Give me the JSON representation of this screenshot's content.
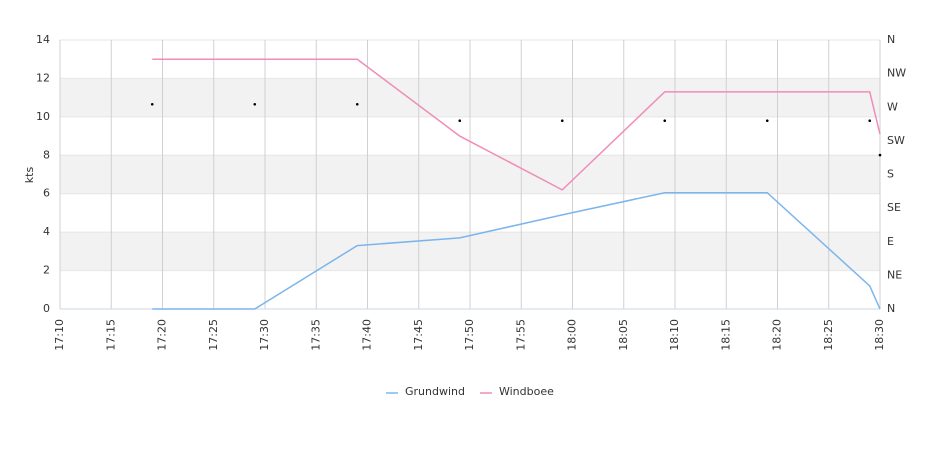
{
  "chart_data": {
    "type": "line",
    "ylabel": "kts",
    "x": [
      "17:19",
      "17:29",
      "17:39",
      "17:49",
      "17:59",
      "18:09",
      "18:19",
      "18:29",
      "18:30"
    ],
    "series": [
      {
        "name": "Grundwind",
        "color": "#7cb5ec",
        "values": [
          0,
          0,
          3.3,
          3.7,
          4.9,
          6.05,
          6.05,
          1.2,
          0
        ]
      },
      {
        "name": "Windboee",
        "color": "#f08cb8",
        "values": [
          13,
          13,
          13,
          9.0,
          6.2,
          11.3,
          11.3,
          11.3,
          9.1
        ]
      },
      {
        "color": "#000000",
        "axis": "y2",
        "marker_only": true,
        "values": [
          274,
          274,
          274,
          252,
          252,
          252,
          252,
          252,
          206
        ]
      }
    ],
    "xlim": [
      "17:10",
      "18:30"
    ],
    "xticks": [
      "17:10",
      "17:15",
      "17:20",
      "17:25",
      "17:30",
      "17:35",
      "17:40",
      "17:45",
      "17:50",
      "17:55",
      "18:00",
      "18:05",
      "18:10",
      "18:15",
      "18:20",
      "18:25",
      "18:30"
    ],
    "ylim": [
      0,
      14
    ],
    "yticks": [
      0,
      2,
      4,
      6,
      8,
      10,
      12,
      14
    ],
    "y2lim": [
      0,
      360
    ],
    "y2ticks": [
      {
        "value": 0,
        "label": "N"
      },
      {
        "value": 45,
        "label": "NE"
      },
      {
        "value": 90,
        "label": "E"
      },
      {
        "value": 135,
        "label": "SE"
      },
      {
        "value": 180,
        "label": "S"
      },
      {
        "value": 225,
        "label": "SW"
      },
      {
        "value": 270,
        "label": "W"
      },
      {
        "value": 315,
        "label": "NW"
      },
      {
        "value": 360,
        "label": "N"
      }
    ],
    "grid": true,
    "alternate_bands": true,
    "legend": "bottom"
  }
}
